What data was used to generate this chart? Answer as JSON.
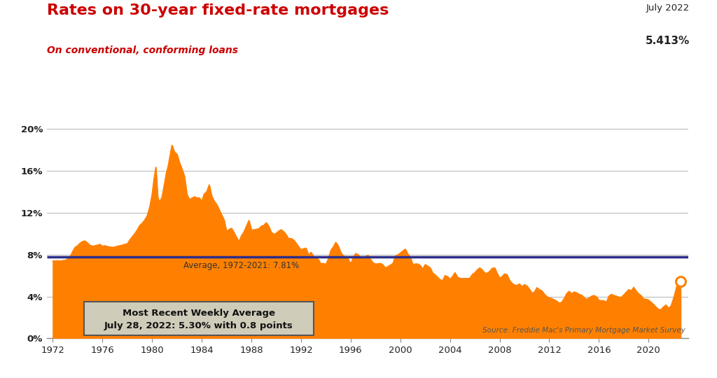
{
  "title": "Rates on 30-year fixed-rate mortgages",
  "subtitle": "On conventional, conforming loans",
  "title_color": "#cc0000",
  "subtitle_color": "#cc0000",
  "line_color": "#FF8000",
  "avg_line_color": "#2e2e8a",
  "avg_line_value": 7.81,
  "avg_label": "Average, 1972-2021: 7.81%",
  "annotation_date": "July 2022",
  "annotation_value": "5.413%",
  "recent_box_text1": "Most Recent Weekly Average",
  "recent_box_text2": "July 28, 2022: 5.30% with 0.8 points",
  "source_text": "Source: Freddie Mac's Primary Mortgage Market Survey",
  "background_color": "#ffffff",
  "plot_bg_color": "#ffffff",
  "yticks": [
    0,
    4,
    8,
    12,
    16,
    20
  ],
  "ylim": [
    0,
    21.5
  ],
  "xticks": [
    1972,
    1976,
    1980,
    1984,
    1988,
    1992,
    1996,
    2000,
    2004,
    2008,
    2012,
    2016,
    2020
  ],
  "xlim": [
    1971.5,
    2023.2
  ],
  "endpoint_value": 5.413,
  "endpoint_year": 2022.58,
  "data": [
    [
      1972.0,
      7.38
    ],
    [
      1972.2,
      7.4
    ],
    [
      1972.4,
      7.42
    ],
    [
      1972.6,
      7.38
    ],
    [
      1972.8,
      7.44
    ],
    [
      1973.0,
      7.44
    ],
    [
      1973.2,
      7.6
    ],
    [
      1973.4,
      7.8
    ],
    [
      1973.6,
      8.3
    ],
    [
      1973.8,
      8.7
    ],
    [
      1974.0,
      8.85
    ],
    [
      1974.2,
      9.1
    ],
    [
      1974.4,
      9.25
    ],
    [
      1974.6,
      9.31
    ],
    [
      1974.8,
      9.1
    ],
    [
      1975.0,
      8.9
    ],
    [
      1975.2,
      8.8
    ],
    [
      1975.4,
      8.85
    ],
    [
      1975.6,
      8.9
    ],
    [
      1975.8,
      8.98
    ],
    [
      1976.0,
      8.8
    ],
    [
      1976.2,
      8.85
    ],
    [
      1976.4,
      8.78
    ],
    [
      1976.6,
      8.72
    ],
    [
      1976.8,
      8.7
    ],
    [
      1977.0,
      8.72
    ],
    [
      1977.2,
      8.8
    ],
    [
      1977.4,
      8.85
    ],
    [
      1977.6,
      8.9
    ],
    [
      1977.8,
      8.99
    ],
    [
      1978.0,
      9.02
    ],
    [
      1978.2,
      9.4
    ],
    [
      1978.4,
      9.7
    ],
    [
      1978.6,
      10.0
    ],
    [
      1978.8,
      10.35
    ],
    [
      1979.0,
      10.78
    ],
    [
      1979.2,
      11.0
    ],
    [
      1979.4,
      11.3
    ],
    [
      1979.6,
      11.7
    ],
    [
      1979.8,
      12.5
    ],
    [
      1980.0,
      13.75
    ],
    [
      1980.15,
      15.2
    ],
    [
      1980.3,
      16.35
    ],
    [
      1980.45,
      13.5
    ],
    [
      1980.6,
      13.0
    ],
    [
      1980.8,
      13.5
    ],
    [
      1981.0,
      14.8
    ],
    [
      1981.15,
      15.8
    ],
    [
      1981.3,
      16.5
    ],
    [
      1981.45,
      17.5
    ],
    [
      1981.6,
      18.45
    ],
    [
      1981.8,
      17.8
    ],
    [
      1982.0,
      17.6
    ],
    [
      1982.2,
      16.8
    ],
    [
      1982.4,
      16.2
    ],
    [
      1982.6,
      15.5
    ],
    [
      1982.8,
      13.8
    ],
    [
      1983.0,
      13.24
    ],
    [
      1983.2,
      13.4
    ],
    [
      1983.4,
      13.52
    ],
    [
      1983.6,
      13.44
    ],
    [
      1983.8,
      13.42
    ],
    [
      1984.0,
      13.1
    ],
    [
      1984.2,
      13.8
    ],
    [
      1984.4,
      14.0
    ],
    [
      1984.6,
      14.67
    ],
    [
      1984.8,
      13.6
    ],
    [
      1985.0,
      13.1
    ],
    [
      1985.2,
      12.8
    ],
    [
      1985.4,
      12.3
    ],
    [
      1985.6,
      11.8
    ],
    [
      1985.8,
      11.3
    ],
    [
      1986.0,
      10.2
    ],
    [
      1986.2,
      10.4
    ],
    [
      1986.4,
      10.52
    ],
    [
      1986.6,
      10.1
    ],
    [
      1986.8,
      9.65
    ],
    [
      1987.0,
      9.25
    ],
    [
      1987.2,
      9.8
    ],
    [
      1987.4,
      10.17
    ],
    [
      1987.6,
      10.72
    ],
    [
      1987.8,
      11.26
    ],
    [
      1988.0,
      10.34
    ],
    [
      1988.2,
      10.38
    ],
    [
      1988.4,
      10.42
    ],
    [
      1988.6,
      10.47
    ],
    [
      1988.8,
      10.72
    ],
    [
      1989.0,
      10.8
    ],
    [
      1989.2,
      11.05
    ],
    [
      1989.4,
      10.7
    ],
    [
      1989.6,
      10.13
    ],
    [
      1989.8,
      9.95
    ],
    [
      1990.0,
      10.04
    ],
    [
      1990.2,
      10.25
    ],
    [
      1990.4,
      10.38
    ],
    [
      1990.6,
      10.19
    ],
    [
      1990.8,
      9.9
    ],
    [
      1991.0,
      9.52
    ],
    [
      1991.2,
      9.54
    ],
    [
      1991.4,
      9.4
    ],
    [
      1991.6,
      9.1
    ],
    [
      1991.8,
      8.75
    ],
    [
      1992.0,
      8.48
    ],
    [
      1992.2,
      8.55
    ],
    [
      1992.4,
      8.62
    ],
    [
      1992.6,
      7.97
    ],
    [
      1992.8,
      8.21
    ],
    [
      1993.0,
      7.84
    ],
    [
      1993.2,
      7.68
    ],
    [
      1993.4,
      7.52
    ],
    [
      1993.6,
      7.11
    ],
    [
      1993.8,
      7.17
    ],
    [
      1994.0,
      7.06
    ],
    [
      1994.2,
      7.6
    ],
    [
      1994.4,
      8.4
    ],
    [
      1994.6,
      8.73
    ],
    [
      1994.8,
      9.17
    ],
    [
      1995.0,
      8.83
    ],
    [
      1995.2,
      8.2
    ],
    [
      1995.4,
      7.89
    ],
    [
      1995.6,
      7.74
    ],
    [
      1995.8,
      7.57
    ],
    [
      1996.0,
      7.09
    ],
    [
      1996.2,
      7.7
    ],
    [
      1996.4,
      8.1
    ],
    [
      1996.6,
      8.0
    ],
    [
      1996.8,
      7.67
    ],
    [
      1997.0,
      7.65
    ],
    [
      1997.2,
      7.8
    ],
    [
      1997.4,
      7.93
    ],
    [
      1997.6,
      7.51
    ],
    [
      1997.8,
      7.22
    ],
    [
      1998.0,
      7.1
    ],
    [
      1998.2,
      7.12
    ],
    [
      1998.4,
      7.16
    ],
    [
      1998.6,
      7.02
    ],
    [
      1998.8,
      6.71
    ],
    [
      1999.0,
      6.85
    ],
    [
      1999.2,
      7.0
    ],
    [
      1999.4,
      7.15
    ],
    [
      1999.6,
      7.85
    ],
    [
      1999.8,
      7.98
    ],
    [
      2000.0,
      8.15
    ],
    [
      2000.2,
      8.35
    ],
    [
      2000.4,
      8.52
    ],
    [
      2000.6,
      8.06
    ],
    [
      2000.8,
      7.75
    ],
    [
      2001.0,
      7.07
    ],
    [
      2001.2,
      7.1
    ],
    [
      2001.4,
      7.11
    ],
    [
      2001.6,
      6.97
    ],
    [
      2001.8,
      6.61
    ],
    [
      2002.0,
      7.04
    ],
    [
      2002.2,
      6.9
    ],
    [
      2002.4,
      6.73
    ],
    [
      2002.6,
      6.26
    ],
    [
      2002.8,
      6.06
    ],
    [
      2003.0,
      5.83
    ],
    [
      2003.2,
      5.6
    ],
    [
      2003.4,
      5.49
    ],
    [
      2003.6,
      6.0
    ],
    [
      2003.8,
      5.9
    ],
    [
      2004.0,
      5.64
    ],
    [
      2004.2,
      5.9
    ],
    [
      2004.4,
      6.27
    ],
    [
      2004.6,
      5.84
    ],
    [
      2004.8,
      5.74
    ],
    [
      2005.0,
      5.71
    ],
    [
      2005.2,
      5.72
    ],
    [
      2005.4,
      5.72
    ],
    [
      2005.6,
      5.74
    ],
    [
      2005.8,
      6.1
    ],
    [
      2006.0,
      6.27
    ],
    [
      2006.2,
      6.55
    ],
    [
      2006.4,
      6.73
    ],
    [
      2006.6,
      6.53
    ],
    [
      2006.8,
      6.24
    ],
    [
      2007.0,
      6.22
    ],
    [
      2007.2,
      6.4
    ],
    [
      2007.4,
      6.69
    ],
    [
      2007.6,
      6.73
    ],
    [
      2007.8,
      6.2
    ],
    [
      2008.0,
      5.76
    ],
    [
      2008.2,
      5.9
    ],
    [
      2008.4,
      6.16
    ],
    [
      2008.6,
      6.06
    ],
    [
      2008.8,
      5.53
    ],
    [
      2009.0,
      5.25
    ],
    [
      2009.2,
      5.1
    ],
    [
      2009.4,
      5.06
    ],
    [
      2009.6,
      5.19
    ],
    [
      2009.8,
      4.93
    ],
    [
      2010.0,
      5.13
    ],
    [
      2010.2,
      5.0
    ],
    [
      2010.4,
      4.7
    ],
    [
      2010.6,
      4.32
    ],
    [
      2010.8,
      4.42
    ],
    [
      2011.0,
      4.84
    ],
    [
      2011.2,
      4.65
    ],
    [
      2011.4,
      4.55
    ],
    [
      2011.6,
      4.22
    ],
    [
      2011.8,
      3.99
    ],
    [
      2012.0,
      3.87
    ],
    [
      2012.2,
      3.8
    ],
    [
      2012.4,
      3.68
    ],
    [
      2012.6,
      3.55
    ],
    [
      2012.8,
      3.35
    ],
    [
      2013.0,
      3.45
    ],
    [
      2013.2,
      3.8
    ],
    [
      2013.4,
      4.27
    ],
    [
      2013.6,
      4.49
    ],
    [
      2013.8,
      4.26
    ],
    [
      2014.0,
      4.43
    ],
    [
      2014.2,
      4.35
    ],
    [
      2014.4,
      4.2
    ],
    [
      2014.6,
      4.13
    ],
    [
      2014.8,
      3.89
    ],
    [
      2015.0,
      3.73
    ],
    [
      2015.2,
      3.85
    ],
    [
      2015.4,
      4.02
    ],
    [
      2015.6,
      4.09
    ],
    [
      2015.8,
      3.97
    ],
    [
      2016.0,
      3.62
    ],
    [
      2016.2,
      3.6
    ],
    [
      2016.4,
      3.59
    ],
    [
      2016.6,
      3.44
    ],
    [
      2016.8,
      4.02
    ],
    [
      2017.0,
      4.2
    ],
    [
      2017.2,
      4.1
    ],
    [
      2017.4,
      4.03
    ],
    [
      2017.6,
      3.93
    ],
    [
      2017.8,
      3.92
    ],
    [
      2018.0,
      4.15
    ],
    [
      2018.2,
      4.4
    ],
    [
      2018.4,
      4.66
    ],
    [
      2018.6,
      4.54
    ],
    [
      2018.8,
      4.87
    ],
    [
      2019.0,
      4.51
    ],
    [
      2019.2,
      4.25
    ],
    [
      2019.4,
      4.07
    ],
    [
      2019.6,
      3.75
    ],
    [
      2019.8,
      3.74
    ],
    [
      2020.0,
      3.65
    ],
    [
      2020.2,
      3.45
    ],
    [
      2020.4,
      3.23
    ],
    [
      2020.6,
      2.98
    ],
    [
      2020.8,
      2.77
    ],
    [
      2021.0,
      2.74
    ],
    [
      2021.2,
      3.0
    ],
    [
      2021.4,
      3.18
    ],
    [
      2021.6,
      2.87
    ],
    [
      2021.8,
      3.07
    ],
    [
      2022.0,
      3.76
    ],
    [
      2022.15,
      4.4
    ],
    [
      2022.3,
      5.1
    ],
    [
      2022.45,
      5.54
    ],
    [
      2022.58,
      5.413
    ]
  ]
}
